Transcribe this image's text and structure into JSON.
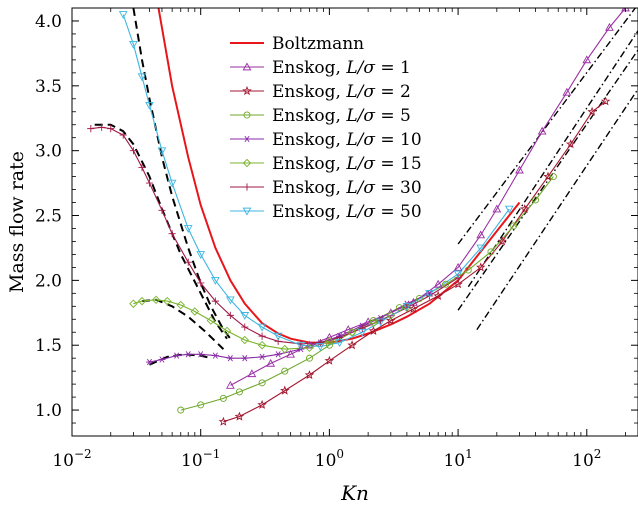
{
  "chart_data": {
    "type": "line",
    "xlabel": "Kn",
    "ylabel": "Mass flow rate",
    "xscale": "log",
    "xlim": [
      0.01,
      250
    ],
    "ylim": [
      0.8,
      4.1
    ],
    "grid": false,
    "legend_position": "top-center",
    "x_ticks": [
      {
        "value": 0.01,
        "base": "10",
        "exp": "−2"
      },
      {
        "value": 0.1,
        "base": "10",
        "exp": "−1"
      },
      {
        "value": 1,
        "base": "10",
        "exp": "0"
      },
      {
        "value": 10,
        "base": "10",
        "exp": "1"
      },
      {
        "value": 100,
        "base": "10",
        "exp": "2"
      }
    ],
    "y_ticks": [
      {
        "value": 1.0,
        "label": "1.0"
      },
      {
        "value": 1.5,
        "label": "1.5"
      },
      {
        "value": 2.0,
        "label": "2.0"
      },
      {
        "value": 2.5,
        "label": "2.5"
      },
      {
        "value": 3.0,
        "label": "3.0"
      },
      {
        "value": 3.5,
        "label": "3.5"
      },
      {
        "value": 4.0,
        "label": "4.0"
      }
    ],
    "series": [
      {
        "name": "Boltzmann",
        "param": "",
        "color": "#e8151b",
        "marker": "none",
        "style": "solid",
        "x": [
          0.047,
          0.06,
          0.08,
          0.1,
          0.13,
          0.17,
          0.22,
          0.3,
          0.4,
          0.5,
          0.7,
          1.0,
          1.5,
          2.0,
          3.0,
          4.0,
          6.0,
          10,
          20,
          30
        ],
        "y": [
          4.1,
          3.5,
          2.95,
          2.58,
          2.25,
          2.0,
          1.82,
          1.67,
          1.59,
          1.55,
          1.52,
          1.52,
          1.55,
          1.59,
          1.66,
          1.72,
          1.82,
          2.0,
          2.38,
          2.6
        ]
      },
      {
        "name": "Enskog, ",
        "param": "1",
        "color": "#9a2fa3",
        "marker": "triangle",
        "style": "solid",
        "x": [
          0.17,
          0.25,
          0.35,
          0.5,
          0.7,
          1.0,
          1.4,
          2.0,
          3.0,
          4.5,
          7.0,
          10,
          15,
          20,
          30,
          45,
          70,
          100,
          150,
          200,
          250
        ],
        "y": [
          1.19,
          1.28,
          1.36,
          1.43,
          1.5,
          1.56,
          1.62,
          1.68,
          1.75,
          1.83,
          1.97,
          2.1,
          2.35,
          2.55,
          2.85,
          3.15,
          3.45,
          3.7,
          3.95,
          4.1,
          4.2
        ]
      },
      {
        "name": "Enskog, ",
        "param": "2",
        "color": "#a3162f",
        "marker": "star",
        "style": "solid",
        "x": [
          0.15,
          0.2,
          0.3,
          0.45,
          0.7,
          1.0,
          1.5,
          2.2,
          3.0,
          4.5,
          7.0,
          10,
          15,
          22,
          33,
          50,
          75,
          110,
          140
        ],
        "y": [
          0.91,
          0.95,
          1.04,
          1.15,
          1.27,
          1.38,
          1.5,
          1.61,
          1.69,
          1.78,
          1.88,
          1.97,
          2.1,
          2.3,
          2.55,
          2.8,
          3.05,
          3.3,
          3.38
        ]
      },
      {
        "name": "Enskog, ",
        "param": "5",
        "color": "#6fa82c",
        "marker": "circle",
        "style": "solid",
        "x": [
          0.07,
          0.1,
          0.15,
          0.2,
          0.3,
          0.45,
          0.7,
          1.0,
          1.5,
          2.2,
          3.5,
          5.0,
          8.0,
          12,
          18,
          27,
          40,
          55
        ],
        "y": [
          1.0,
          1.04,
          1.09,
          1.14,
          1.21,
          1.3,
          1.4,
          1.5,
          1.6,
          1.69,
          1.79,
          1.86,
          1.97,
          2.08,
          2.22,
          2.42,
          2.62,
          2.8
        ]
      },
      {
        "name": "Enskog, ",
        "param": "10",
        "color": "#8a2ba8",
        "marker": "asterisk",
        "style": "solid",
        "x": [
          0.04,
          0.05,
          0.065,
          0.08,
          0.1,
          0.13,
          0.17,
          0.22,
          0.3,
          0.4,
          0.6,
          0.85,
          1.2,
          1.8,
          2.5,
          4.0,
          6.0
        ],
        "y": [
          1.37,
          1.39,
          1.42,
          1.43,
          1.43,
          1.42,
          1.4,
          1.4,
          1.41,
          1.43,
          1.47,
          1.52,
          1.57,
          1.65,
          1.71,
          1.82,
          1.9
        ]
      },
      {
        "name": "Enskog, ",
        "param": "15",
        "color": "#78b42c",
        "marker": "diamond",
        "style": "solid",
        "x": [
          0.03,
          0.035,
          0.045,
          0.055,
          0.07,
          0.09,
          0.12,
          0.16,
          0.22,
          0.3,
          0.45,
          0.7,
          1.0,
          1.5,
          2.2,
          3.0,
          4.0
        ],
        "y": [
          1.82,
          1.84,
          1.85,
          1.84,
          1.81,
          1.76,
          1.69,
          1.61,
          1.54,
          1.5,
          1.47,
          1.48,
          1.53,
          1.6,
          1.67,
          1.73,
          1.79
        ]
      },
      {
        "name": "Enskog, ",
        "param": "30",
        "color": "#a01a45",
        "marker": "plus",
        "style": "solid",
        "x": [
          0.014,
          0.017,
          0.02,
          0.025,
          0.03,
          0.035,
          0.04,
          0.05,
          0.06,
          0.08,
          0.1,
          0.13,
          0.17,
          0.22,
          0.3,
          0.4,
          0.6,
          0.85,
          1.2,
          1.8,
          2.5,
          4.0,
          6.0,
          10
        ],
        "y": [
          3.17,
          3.18,
          3.17,
          3.12,
          3.0,
          2.87,
          2.75,
          2.54,
          2.36,
          2.14,
          1.98,
          1.84,
          1.73,
          1.64,
          1.57,
          1.53,
          1.51,
          1.52,
          1.56,
          1.63,
          1.69,
          1.79,
          1.88,
          2.02
        ]
      },
      {
        "name": "Enskog, ",
        "param": "50",
        "color": "#3fb6e0",
        "marker": "triangle-down",
        "style": "solid",
        "x": [
          0.025,
          0.03,
          0.035,
          0.04,
          0.05,
          0.06,
          0.08,
          0.1,
          0.13,
          0.17,
          0.22,
          0.3,
          0.4,
          0.6,
          0.85,
          1.2,
          1.8,
          2.5,
          4.0,
          6.0,
          10,
          15,
          25
        ],
        "y": [
          4.05,
          3.82,
          3.57,
          3.35,
          3.0,
          2.75,
          2.4,
          2.2,
          2.0,
          1.85,
          1.73,
          1.64,
          1.57,
          1.5,
          1.49,
          1.52,
          1.6,
          1.68,
          1.8,
          1.9,
          2.05,
          2.25,
          2.55
        ]
      }
    ],
    "reference_lines": [
      {
        "style": "dashed",
        "x": [
          0.03,
          0.035,
          0.04,
          0.05,
          0.06,
          0.08,
          0.1,
          0.12,
          0.15,
          0.17
        ],
        "y": [
          4.1,
          3.7,
          3.4,
          2.95,
          2.65,
          2.25,
          1.98,
          1.8,
          1.62,
          1.55
        ]
      },
      {
        "style": "dashed",
        "x": [
          0.015,
          0.02,
          0.025,
          0.03,
          0.04,
          0.05,
          0.07,
          0.1,
          0.13,
          0.16
        ],
        "y": [
          3.2,
          3.2,
          3.15,
          3.05,
          2.8,
          2.55,
          2.2,
          1.9,
          1.68,
          1.55
        ]
      },
      {
        "style": "dashed",
        "x": [
          0.035,
          0.045,
          0.06,
          0.08,
          0.11,
          0.15
        ],
        "y": [
          1.84,
          1.85,
          1.8,
          1.72,
          1.6,
          1.47
        ]
      },
      {
        "style": "dashed",
        "x": [
          0.04,
          0.055,
          0.075,
          0.1,
          0.12
        ],
        "y": [
          1.35,
          1.41,
          1.43,
          1.42,
          1.4
        ]
      },
      {
        "style": "dashdot",
        "x": [
          10,
          260
        ],
        "y": [
          2.28,
          4.15
        ]
      },
      {
        "style": "dashdot",
        "x": [
          12,
          260
        ],
        "y": [
          1.95,
          3.95
        ]
      },
      {
        "style": "dashdot",
        "x": [
          10,
          260
        ],
        "y": [
          1.77,
          3.8
        ]
      },
      {
        "style": "dashdot",
        "x": [
          14,
          260
        ],
        "y": [
          1.62,
          3.5
        ]
      }
    ]
  }
}
